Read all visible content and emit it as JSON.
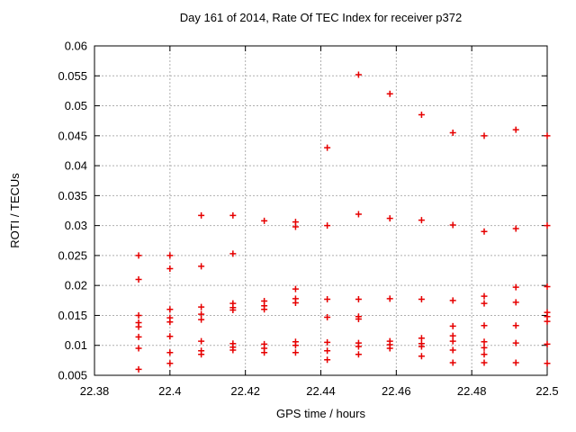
{
  "window": {
    "background": "#ffffff"
  },
  "chart_data": {
    "type": "scatter",
    "title": "Day 161 of 2014, Rate Of TEC Index for receiver p372",
    "xlabel": "GPS time / hours",
    "ylabel": "ROTI / TECUs",
    "xlim": [
      22.38,
      22.5
    ],
    "ylim": [
      0.005,
      0.06
    ],
    "xticks": [
      22.38,
      22.4,
      22.42,
      22.44,
      22.46,
      22.48,
      22.5
    ],
    "xtick_labels": [
      "22.38",
      "22.4",
      "22.42",
      "22.44",
      "22.46",
      "22.48",
      "22.5"
    ],
    "yticks": [
      0.005,
      0.01,
      0.015,
      0.02,
      0.025,
      0.03,
      0.035,
      0.04,
      0.045,
      0.05,
      0.055,
      0.06
    ],
    "ytick_labels": [
      "0.005",
      "0.01",
      "0.015",
      "0.02",
      "0.025",
      "0.03",
      "0.035",
      "0.04",
      "0.045",
      "0.05",
      "0.055",
      "0.06"
    ],
    "grid": true,
    "legend_position": "none",
    "marker": {
      "shape": "plus",
      "color": "#e60000",
      "size": 7
    },
    "frame_color": "#000000",
    "grid_color": "#b0b0b0",
    "series": [
      {
        "name": "ROTI",
        "points": [
          [
            22.3917,
            0.025
          ],
          [
            22.3917,
            0.021
          ],
          [
            22.3917,
            0.015
          ],
          [
            22.3917,
            0.0138
          ],
          [
            22.3917,
            0.0131
          ],
          [
            22.3917,
            0.0114
          ],
          [
            22.3917,
            0.0095
          ],
          [
            22.3917,
            0.006
          ],
          [
            22.4,
            0.025
          ],
          [
            22.4,
            0.0228
          ],
          [
            22.4,
            0.016
          ],
          [
            22.4,
            0.0146
          ],
          [
            22.4,
            0.0139
          ],
          [
            22.4,
            0.0115
          ],
          [
            22.4,
            0.0088
          ],
          [
            22.4,
            0.007
          ],
          [
            22.4083,
            0.0317
          ],
          [
            22.4083,
            0.0232
          ],
          [
            22.4083,
            0.0164
          ],
          [
            22.4083,
            0.0152
          ],
          [
            22.4083,
            0.0143
          ],
          [
            22.4083,
            0.0107
          ],
          [
            22.4083,
            0.0091
          ],
          [
            22.4083,
            0.0085
          ],
          [
            22.4167,
            0.0317
          ],
          [
            22.4167,
            0.0253
          ],
          [
            22.4167,
            0.017
          ],
          [
            22.4167,
            0.0163
          ],
          [
            22.4167,
            0.0159
          ],
          [
            22.4167,
            0.0103
          ],
          [
            22.4167,
            0.0097
          ],
          [
            22.4167,
            0.0092
          ],
          [
            22.425,
            0.0308
          ],
          [
            22.425,
            0.0174
          ],
          [
            22.425,
            0.0166
          ],
          [
            22.425,
            0.016
          ],
          [
            22.425,
            0.0102
          ],
          [
            22.425,
            0.0095
          ],
          [
            22.425,
            0.0088
          ],
          [
            22.4333,
            0.0306
          ],
          [
            22.4333,
            0.0298
          ],
          [
            22.4333,
            0.0194
          ],
          [
            22.4333,
            0.0178
          ],
          [
            22.4333,
            0.0171
          ],
          [
            22.4333,
            0.0106
          ],
          [
            22.4333,
            0.01
          ],
          [
            22.4333,
            0.0088
          ],
          [
            22.4417,
            0.043
          ],
          [
            22.4417,
            0.03
          ],
          [
            22.4417,
            0.0177
          ],
          [
            22.4417,
            0.0147
          ],
          [
            22.4417,
            0.0105
          ],
          [
            22.4417,
            0.0091
          ],
          [
            22.4417,
            0.0076
          ],
          [
            22.45,
            0.0552
          ],
          [
            22.45,
            0.0319
          ],
          [
            22.45,
            0.0177
          ],
          [
            22.45,
            0.0148
          ],
          [
            22.45,
            0.0144
          ],
          [
            22.45,
            0.0104
          ],
          [
            22.45,
            0.0098
          ],
          [
            22.45,
            0.0085
          ],
          [
            22.4583,
            0.052
          ],
          [
            22.4583,
            0.0312
          ],
          [
            22.4583,
            0.0178
          ],
          [
            22.4583,
            0.0107
          ],
          [
            22.4583,
            0.0101
          ],
          [
            22.4583,
            0.0095
          ],
          [
            22.4667,
            0.0485
          ],
          [
            22.4667,
            0.0309
          ],
          [
            22.4667,
            0.0177
          ],
          [
            22.4667,
            0.0112
          ],
          [
            22.4667,
            0.0103
          ],
          [
            22.4667,
            0.0098
          ],
          [
            22.4667,
            0.0082
          ],
          [
            22.475,
            0.0455
          ],
          [
            22.475,
            0.0301
          ],
          [
            22.475,
            0.0175
          ],
          [
            22.475,
            0.0132
          ],
          [
            22.475,
            0.0116
          ],
          [
            22.475,
            0.0107
          ],
          [
            22.475,
            0.0092
          ],
          [
            22.475,
            0.0071
          ],
          [
            22.4833,
            0.045
          ],
          [
            22.4833,
            0.029
          ],
          [
            22.4833,
            0.0182
          ],
          [
            22.4833,
            0.017
          ],
          [
            22.4833,
            0.0133
          ],
          [
            22.4833,
            0.0106
          ],
          [
            22.4833,
            0.0096
          ],
          [
            22.4833,
            0.0085
          ],
          [
            22.4833,
            0.0071
          ],
          [
            22.4917,
            0.046
          ],
          [
            22.4917,
            0.0295
          ],
          [
            22.4917,
            0.0197
          ],
          [
            22.4917,
            0.0172
          ],
          [
            22.4917,
            0.0133
          ],
          [
            22.4917,
            0.0104
          ],
          [
            22.4917,
            0.0071
          ],
          [
            22.5,
            0.045
          ],
          [
            22.5,
            0.03
          ],
          [
            22.5,
            0.0198
          ],
          [
            22.5,
            0.0155
          ],
          [
            22.5,
            0.0148
          ],
          [
            22.5,
            0.014
          ],
          [
            22.5,
            0.0102
          ],
          [
            22.5,
            0.007
          ]
        ]
      }
    ]
  }
}
